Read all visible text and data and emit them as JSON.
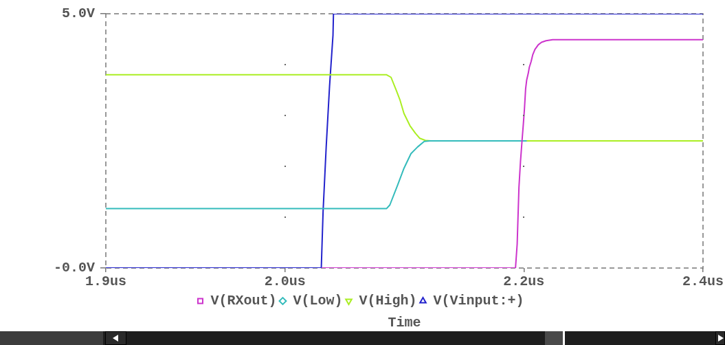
{
  "chart_data": {
    "type": "line",
    "xlabel": "Time",
    "legend": "bottom",
    "xlim": [
      1.85,
      2.35
    ],
    "xticks": [
      {
        "value": 1.85,
        "label": "1.9us"
      },
      {
        "value": 2.0,
        "label": "2.0us"
      },
      {
        "value": 2.2,
        "label": "2.2us"
      },
      {
        "value": 2.35,
        "label": "2.4us"
      }
    ],
    "ylim": [
      0,
      5
    ],
    "yticks": [
      {
        "value": 0,
        "label": "-0.0V"
      },
      {
        "value": 5,
        "label": "5.0V"
      }
    ],
    "series": [
      {
        "name": "V(RXout)",
        "color": "#cc33cc",
        "x": [
          2.031,
          2.193,
          2.1944,
          2.1959,
          2.1972,
          2.1985,
          2.1996,
          2.2005,
          2.2015,
          2.2024,
          2.2037,
          2.2046,
          2.2061,
          2.2074,
          2.2093,
          2.2121,
          2.2148,
          2.2186,
          2.2241,
          2.35
        ],
        "values": [
          0,
          0,
          0.47,
          1.59,
          2.1,
          2.51,
          2.84,
          3.13,
          3.53,
          3.7,
          3.83,
          3.95,
          4.06,
          4.19,
          4.3,
          4.39,
          4.44,
          4.47,
          4.49,
          4.49
        ]
      },
      {
        "name": "V(Low)",
        "color": "#33bbbb",
        "x": [
          1.85,
          2.0851,
          2.0878,
          2.0943,
          2.0996,
          2.1055,
          2.111,
          2.1166,
          2.1213,
          2.2019
        ],
        "values": [
          1.17,
          1.17,
          1.24,
          1.63,
          1.96,
          2.25,
          2.38,
          2.49,
          2.5,
          2.5
        ]
      },
      {
        "name": "V(High)",
        "color": "#aaee22",
        "x": [
          1.85,
          2.0851,
          2.0888,
          2.0934,
          2.0962,
          2.0996,
          2.1046,
          2.1092,
          2.1129,
          2.1175,
          2.1221,
          2.35
        ],
        "values": [
          3.8,
          3.8,
          3.75,
          3.48,
          3.31,
          3.04,
          2.8,
          2.65,
          2.55,
          2.51,
          2.5,
          2.5
        ]
      },
      {
        "name": "V(Vinput:+)",
        "color": "#2222cc",
        "x": [
          1.85,
          2.0304,
          2.0319,
          2.0345,
          2.0373,
          2.0402,
          2.0406,
          2.35
        ],
        "values": [
          0,
          0,
          1.11,
          2.38,
          3.57,
          4.58,
          5,
          5
        ]
      }
    ]
  }
}
